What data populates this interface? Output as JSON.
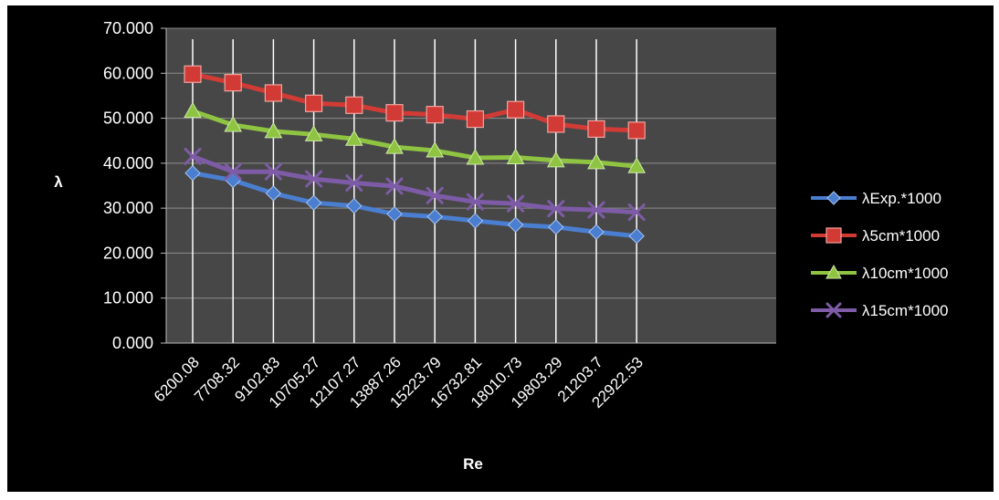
{
  "chart_data": {
    "type": "line",
    "xlabel": "Re",
    "ylabel": "λ",
    "ylim": [
      0,
      70
    ],
    "y_tick_step": 10,
    "y_tick_labels": [
      "0.000",
      "10.000",
      "20.000",
      "30.000",
      "40.000",
      "50.000",
      "60.000",
      "70.000"
    ],
    "categories": [
      "6200.08",
      "7708.32",
      "9102.83",
      "10705.27",
      "12107.27",
      "13887.26",
      "15223.79",
      "16732.81",
      "18010.73",
      "19803.29",
      "21203.7",
      "22922.53"
    ],
    "grid": "vertical-white-lines-and-horizontal-grey-gridlines",
    "legend_position": "right",
    "background_color": "#000000",
    "plot_background_color": "#474747",
    "series": [
      {
        "name": "λExp.*1000",
        "color": "#4a7ed0",
        "marker": "diamond",
        "values": [
          37.8,
          36.2,
          33.3,
          31.2,
          30.5,
          28.7,
          28.1,
          27.2,
          26.3,
          25.8,
          24.7,
          23.8
        ]
      },
      {
        "name": "λ5cm*1000",
        "color": "#d23b35",
        "marker": "square",
        "values": [
          59.8,
          57.9,
          55.6,
          53.3,
          52.9,
          51.2,
          50.8,
          49.8,
          51.9,
          48.7,
          47.6,
          47.3
        ]
      },
      {
        "name": "λ10cm*1000",
        "color": "#8ec441",
        "marker": "triangle",
        "values": [
          51.6,
          48.5,
          47.1,
          46.4,
          45.4,
          43.6,
          42.8,
          41.2,
          41.3,
          40.6,
          40.2,
          39.3
        ]
      },
      {
        "name": "λ15cm*1000",
        "color": "#7d5ba6",
        "marker": "x",
        "values": [
          41.5,
          38.1,
          38.1,
          36.5,
          35.6,
          34.9,
          32.8,
          31.4,
          31.0,
          29.9,
          29.6,
          29.1
        ]
      }
    ]
  }
}
